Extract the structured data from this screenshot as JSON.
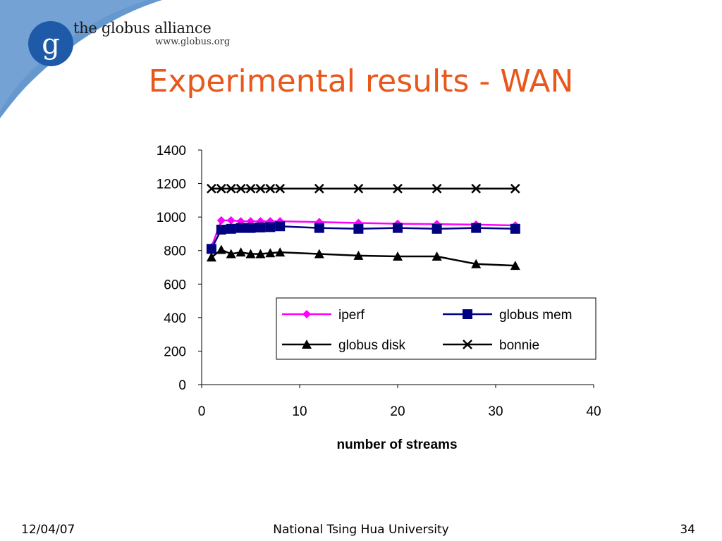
{
  "header": {
    "logo_text": "the globus alliance",
    "logo_url": "www.globus.org",
    "logo_letter": "g",
    "accent_color": "#e8571c",
    "swoosh_color": "#4a86c5"
  },
  "slide": {
    "title": "Experimental results - WAN"
  },
  "footer": {
    "date": "12/04/07",
    "center": "National Tsing Hua University",
    "page": "34"
  },
  "chart_data": {
    "type": "line",
    "title": "",
    "xlabel": "number of streams",
    "ylabel": "",
    "xlim": [
      0,
      40
    ],
    "ylim": [
      0,
      1400
    ],
    "xticks": [
      0,
      10,
      20,
      30,
      40
    ],
    "yticks": [
      0,
      200,
      400,
      600,
      800,
      1000,
      1200,
      1400
    ],
    "grid": false,
    "legend_position": "right-center",
    "x": [
      1,
      2,
      3,
      4,
      5,
      6,
      7,
      8,
      12,
      16,
      20,
      24,
      28,
      32
    ],
    "series": [
      {
        "name": "iperf",
        "color": "#ff00ff",
        "marker": "diamond",
        "values": [
          820,
          980,
          980,
          975,
          975,
          975,
          975,
          975,
          970,
          965,
          960,
          958,
          955,
          950
        ]
      },
      {
        "name": "globus mem",
        "color": "#000080",
        "marker": "square",
        "values": [
          810,
          925,
          930,
          935,
          935,
          938,
          940,
          945,
          935,
          930,
          935,
          930,
          935,
          930
        ]
      },
      {
        "name": "globus disk",
        "color": "#000000",
        "marker": "triangle",
        "values": [
          760,
          805,
          780,
          790,
          780,
          780,
          785,
          790,
          780,
          770,
          765,
          765,
          720,
          710
        ]
      },
      {
        "name": "bonnie",
        "color": "#000000",
        "marker": "x",
        "values": [
          1170,
          1170,
          1170,
          1170,
          1170,
          1170,
          1170,
          1170,
          1170,
          1170,
          1170,
          1170,
          1170,
          1170
        ]
      }
    ]
  }
}
